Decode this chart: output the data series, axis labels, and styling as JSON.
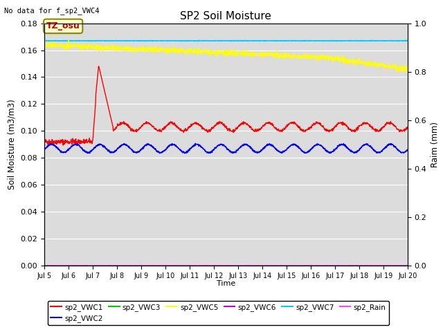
{
  "title": "SP2 Soil Moisture",
  "top_left_text": "No data for f_sp2_VWC4",
  "annotation_text": "TZ_osu",
  "xlabel": "Time",
  "ylabel_left": "Soil Moisture (m3/m3)",
  "ylabel_right": "Raim (mm)",
  "ylim_left": [
    0.0,
    0.18
  ],
  "ylim_right": [
    0.0,
    1.0
  ],
  "xlim": [
    0,
    15
  ],
  "background_color": "#dcdcdc",
  "x_ticks": [
    0,
    1,
    2,
    3,
    4,
    5,
    6,
    7,
    8,
    9,
    10,
    11,
    12,
    13,
    14,
    15
  ],
  "x_tick_labels": [
    "Jul 5",
    "Jul 6",
    "Jul 7",
    "Jul 8",
    "Jul 9",
    "Jul 10",
    "Jul 11",
    "Jul 12",
    "Jul 13",
    "Jul 14",
    "Jul 15",
    "Jul 16",
    "Jul 17",
    "Jul 18",
    "Jul 19",
    "Jul 20"
  ],
  "y_ticks_left": [
    0.0,
    0.02,
    0.04,
    0.06,
    0.08,
    0.1,
    0.12,
    0.14,
    0.16,
    0.18
  ],
  "y_ticks_right": [
    0.0,
    0.2,
    0.4,
    0.6,
    0.8,
    1.0
  ],
  "vwc1_color": "#ff0000",
  "vwc2_color": "#0000ff",
  "vwc3_color": "#00cc00",
  "vwc5_color": "#ffff00",
  "vwc6_color": "#cc00cc",
  "vwc7_color": "#00ccff",
  "rain_color": "#ff44ff",
  "annotation_facecolor": "#ffffcc",
  "annotation_edgecolor": "#888800",
  "annotation_textcolor": "#cc0000"
}
